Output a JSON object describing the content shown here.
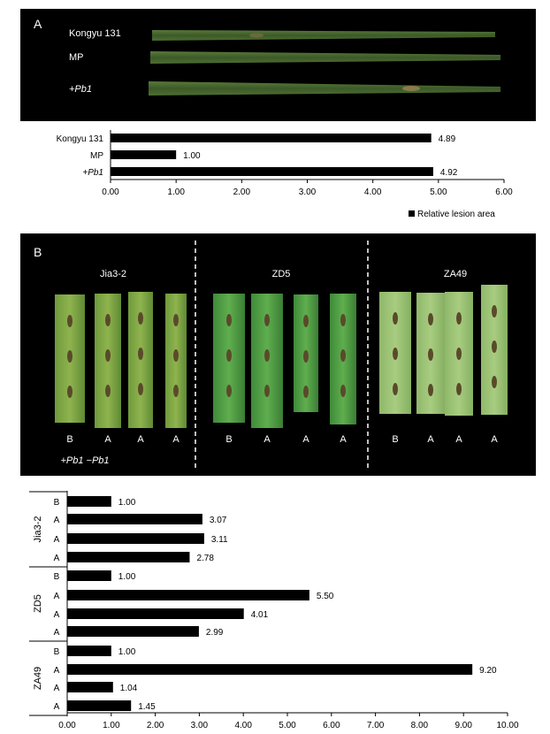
{
  "panel_a": {
    "label": "A",
    "photo_labels": [
      "Kongyu 131",
      "MP",
      "+Pb1"
    ]
  },
  "panel_b": {
    "label": "B",
    "group_titles": [
      "Jia3-2",
      "ZD5",
      "ZA49"
    ],
    "leaf_labels": [
      [
        "B",
        "A",
        "A",
        "A"
      ],
      [
        "B",
        "A",
        "A",
        "A"
      ],
      [
        "B",
        "A",
        "A",
        "A"
      ]
    ],
    "legend_bottom": "+Pb1 −Pb1"
  },
  "colors": {
    "photo_bg": "#000000",
    "leaf_dark": "#3f5a2c",
    "leaf_light": "#7fa05a",
    "bar": "#000000"
  },
  "chart_data": [
    {
      "type": "bar",
      "orientation": "horizontal",
      "categories": [
        "Kongyu 131",
        "MP",
        "+Pb1"
      ],
      "values": [
        4.89,
        1.0,
        4.92
      ],
      "value_labels": [
        "4.89",
        "1.00",
        "4.92"
      ],
      "xlim": [
        0,
        6
      ],
      "xticks": [
        "0.00",
        "1.00",
        "2.00",
        "3.00",
        "4.00",
        "5.00",
        "6.00"
      ],
      "legend": "Relative lesion area",
      "legend_position": "bottom-right"
    },
    {
      "type": "bar",
      "orientation": "horizontal",
      "groups": [
        {
          "name": "Jia3-2",
          "categories": [
            "B",
            "A",
            "A",
            "A"
          ],
          "values": [
            1.0,
            3.07,
            3.11,
            2.78
          ],
          "value_labels": [
            "1.00",
            "3.07",
            "3.11",
            "2.78"
          ]
        },
        {
          "name": "ZD5",
          "categories": [
            "B",
            "A",
            "A",
            "A"
          ],
          "values": [
            1.0,
            5.5,
            4.01,
            2.99
          ],
          "value_labels": [
            "1.00",
            "5.50",
            "4.01",
            "2.99"
          ]
        },
        {
          "name": "ZA49",
          "categories": [
            "B",
            "A",
            "A",
            "A"
          ],
          "values": [
            1.0,
            9.2,
            1.04,
            1.45
          ],
          "value_labels": [
            "1.00",
            "9.20",
            "1.04",
            "1.45"
          ]
        }
      ],
      "xlim": [
        0,
        10
      ],
      "xticks": [
        "0.00",
        "1.00",
        "2.00",
        "3.00",
        "4.00",
        "5.00",
        "6.00",
        "7.00",
        "8.00",
        "9.00",
        "10.00"
      ]
    }
  ]
}
